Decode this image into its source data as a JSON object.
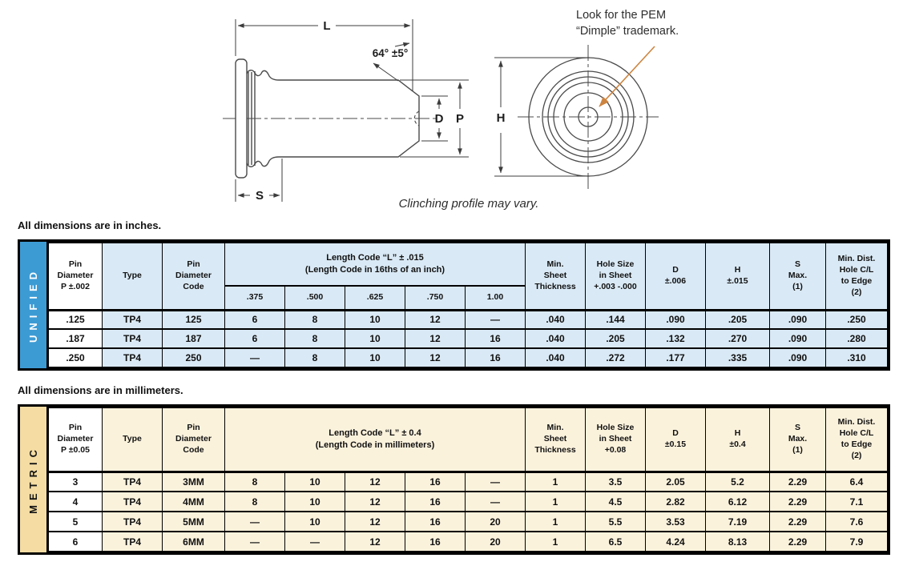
{
  "colors": {
    "unified_accent": "#3D9BD4",
    "unified_cell": "#D9E9F5",
    "metric_accent": "#F4DCA3",
    "metric_cell": "#FBF2DC",
    "callout_arrow": "#CD8440",
    "drawing_line": "#3C3C3C"
  },
  "drawing": {
    "dim_l": "L",
    "dim_angle": "64° ±5°",
    "dim_d": "D",
    "dim_p": "P",
    "dim_h": "H",
    "dim_s": "S",
    "annotation_line1": "Look for the PEM",
    "annotation_line2": "“Dimple” trademark.",
    "caption": "Clinching profile may vary."
  },
  "unified": {
    "note": "All dimensions are in inches.",
    "side_label": "UNIFIED",
    "headers": {
      "pin_dia": "Pin\nDiameter\nP ±.002",
      "type": "Type",
      "code": "Pin\nDiameter\nCode",
      "length": "Length Code “L” ± .015\n(Length Code in 16ths of an inch)",
      "sub": [
        ".375",
        ".500",
        ".625",
        ".750",
        "1.00"
      ],
      "min_sheet": "Min.\nSheet\nThickness",
      "hole": "Hole Size\nin Sheet\n+.003 -.000",
      "d": "D\n±.006",
      "h": "H\n±.015",
      "s": "S\nMax.\n(1)",
      "dist": "Min. Dist.\nHole C/L\nto Edge\n(2)"
    },
    "rows": [
      [
        ".125",
        "TP4",
        "125",
        "6",
        "8",
        "10",
        "12",
        "—",
        ".040",
        ".144",
        ".090",
        ".205",
        ".090",
        ".250"
      ],
      [
        ".187",
        "TP4",
        "187",
        "6",
        "8",
        "10",
        "12",
        "16",
        ".040",
        ".205",
        ".132",
        ".270",
        ".090",
        ".280"
      ],
      [
        ".250",
        "TP4",
        "250",
        "—",
        "8",
        "10",
        "12",
        "16",
        ".040",
        ".272",
        ".177",
        ".335",
        ".090",
        ".310"
      ]
    ]
  },
  "metric": {
    "note": "All dimensions are in millimeters.",
    "side_label": "METRIC",
    "headers": {
      "pin_dia": "Pin\nDiameter\nP ±0.05",
      "type": "Type",
      "code": "Pin\nDiameter\nCode",
      "length": "Length Code “L” ± 0.4\n(Length Code in millimeters)",
      "min_sheet": "Min.\nSheet\nThickness",
      "hole": "Hole Size\nin Sheet\n+0.08",
      "d": "D\n±0.15",
      "h": "H\n±0.4",
      "s": "S\nMax.\n(1)",
      "dist": "Min. Dist.\nHole C/L\nto Edge\n(2)"
    },
    "rows": [
      [
        "3",
        "TP4",
        "3MM",
        "8",
        "10",
        "12",
        "16",
        "—",
        "1",
        "3.5",
        "2.05",
        "5.2",
        "2.29",
        "6.4"
      ],
      [
        "4",
        "TP4",
        "4MM",
        "8",
        "10",
        "12",
        "16",
        "—",
        "1",
        "4.5",
        "2.82",
        "6.12",
        "2.29",
        "7.1"
      ],
      [
        "5",
        "TP4",
        "5MM",
        "—",
        "10",
        "12",
        "16",
        "20",
        "1",
        "5.5",
        "3.53",
        "7.19",
        "2.29",
        "7.6"
      ],
      [
        "6",
        "TP4",
        "6MM",
        "—",
        "—",
        "12",
        "16",
        "20",
        "1",
        "6.5",
        "4.24",
        "8.13",
        "2.29",
        "7.9"
      ]
    ]
  }
}
